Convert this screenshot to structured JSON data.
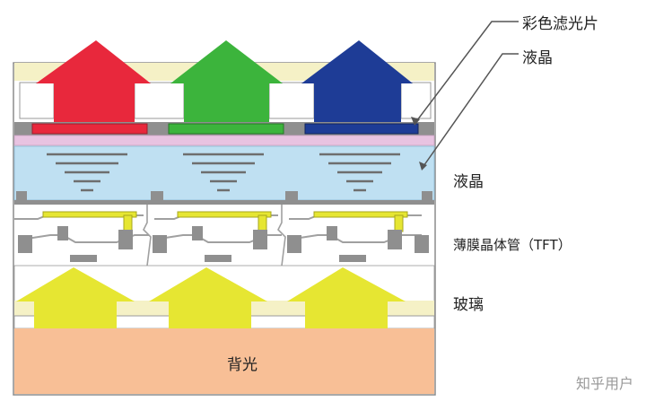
{
  "labels": {
    "color_filter": "彩色滤光片",
    "lc_top": "液晶",
    "lc_right": "液晶",
    "tft": "薄膜晶体管（TFT）",
    "glass": "玻璃",
    "backlight": "背光"
  },
  "watermark": "知乎用户",
  "colors": {
    "red": "#e8283c",
    "green": "#3cb43c",
    "blue": "#1e3c96",
    "yellow": "#e6e632",
    "backlight": "#f8bf96",
    "lc_layer": "#bfe0f2",
    "pink_layer": "#e8c3e1",
    "cream": "#f5f1c6",
    "gray": "#8f8f8f"
  }
}
